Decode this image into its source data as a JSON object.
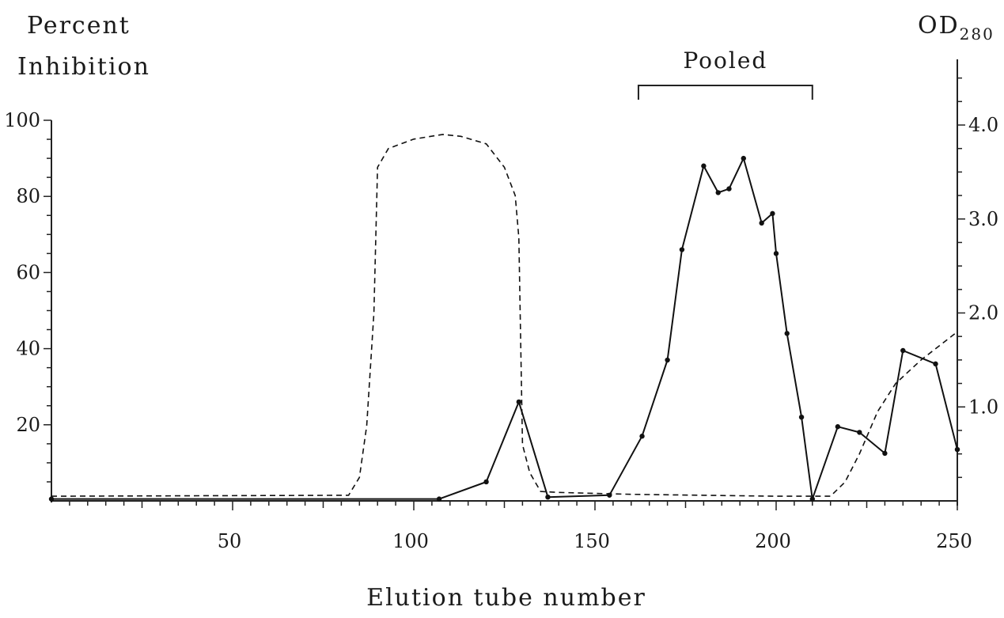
{
  "chart_data": {
    "type": "line",
    "title": "",
    "xlabel": "Elution tube number",
    "ylabel_left": {
      "line1": "Percent",
      "line2": "Inhibition"
    },
    "ylabel_right": {
      "main": "OD",
      "sub": "280"
    },
    "xlim": [
      0,
      250
    ],
    "ylim_left": [
      0,
      100
    ],
    "ylim_right": [
      0,
      4.5
    ],
    "x_ticks": [
      50,
      100,
      150,
      200,
      250
    ],
    "x_tick_labels": [
      "50",
      "100",
      "150",
      "200",
      "250"
    ],
    "y_left_ticks": [
      20,
      40,
      60,
      80,
      100
    ],
    "y_left_tick_labels": [
      "20",
      "40",
      "60",
      "80",
      "100"
    ],
    "y_right_ticks": [
      1.0,
      2.0,
      3.0,
      4.0
    ],
    "y_right_tick_labels": [
      "1.0",
      "2.0",
      "3.0",
      "4.0"
    ],
    "grid": false,
    "legend": "none",
    "series": [
      {
        "axis": "left",
        "style": "solid",
        "markers": true,
        "points": [
          [
            0,
            0.5
          ],
          [
            107,
            0.5
          ],
          [
            120,
            5
          ],
          [
            129,
            26
          ],
          [
            137,
            1
          ],
          [
            154,
            1.5
          ],
          [
            163,
            17
          ],
          [
            170,
            37
          ],
          [
            174,
            66
          ],
          [
            180,
            88
          ],
          [
            184,
            81
          ],
          [
            187,
            82
          ],
          [
            191,
            90
          ],
          [
            196,
            73
          ],
          [
            199,
            75.5
          ],
          [
            200,
            65
          ],
          [
            203,
            44
          ],
          [
            207,
            22
          ],
          [
            210,
            0.5
          ],
          [
            217,
            19.5
          ],
          [
            223,
            18
          ],
          [
            230,
            12.5
          ],
          [
            235,
            39.5
          ],
          [
            244,
            36
          ],
          [
            250,
            13.5
          ]
        ]
      },
      {
        "axis": "right",
        "style": "dashed",
        "markers": false,
        "points": [
          [
            0,
            0.05
          ],
          [
            82,
            0.06
          ],
          [
            85,
            0.25
          ],
          [
            87,
            0.8
          ],
          [
            89,
            2.0
          ],
          [
            90,
            3.55
          ],
          [
            93,
            3.75
          ],
          [
            100,
            3.85
          ],
          [
            108,
            3.9
          ],
          [
            113,
            3.88
          ],
          [
            120,
            3.8
          ],
          [
            125,
            3.55
          ],
          [
            128,
            3.25
          ],
          [
            129,
            2.8
          ],
          [
            130,
            0.6
          ],
          [
            132,
            0.3
          ],
          [
            135,
            0.1
          ],
          [
            140,
            0.09
          ],
          [
            160,
            0.07
          ],
          [
            200,
            0.05
          ],
          [
            215,
            0.05
          ],
          [
            219,
            0.2
          ],
          [
            223,
            0.5
          ],
          [
            228,
            0.95
          ],
          [
            233,
            1.25
          ],
          [
            240,
            1.5
          ],
          [
            245,
            1.65
          ],
          [
            250,
            1.8
          ]
        ]
      }
    ],
    "annotations": [
      {
        "text": "Pooled",
        "type": "bracket",
        "x_start": 162,
        "x_end": 210
      }
    ]
  }
}
